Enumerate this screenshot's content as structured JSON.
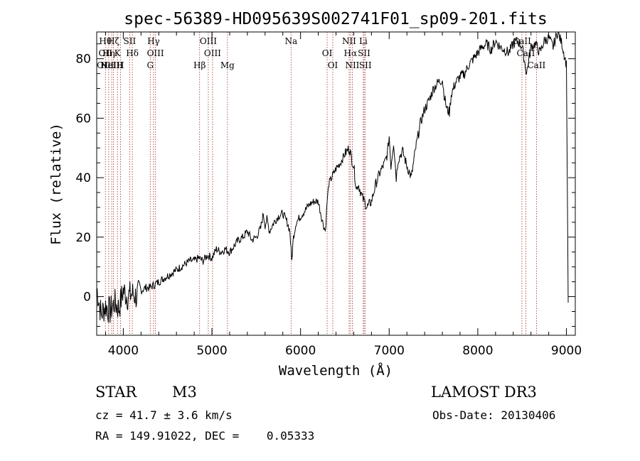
{
  "chart_data": {
    "type": "line",
    "title": "spec-56389-HD095639S002741F01_sp09-201.fits",
    "xlabel": "Wavelength (Å)",
    "ylabel": "Flux (relative)",
    "xlim": [
      3700,
      9100
    ],
    "ylim": [
      -13,
      89
    ],
    "xticks": [
      4000,
      5000,
      6000,
      7000,
      8000,
      9000
    ],
    "yticks": [
      0,
      20,
      40,
      60,
      80
    ],
    "series": [
      {
        "name": "spectrum",
        "x": [
          3700,
          3750,
          3800,
          3850,
          3900,
          3950,
          4000,
          4050,
          4100,
          4150,
          4200,
          4250,
          4300,
          4350,
          4400,
          4450,
          4500,
          4550,
          4600,
          4650,
          4700,
          4750,
          4800,
          4850,
          4900,
          4950,
          5000,
          5050,
          5100,
          5150,
          5200,
          5250,
          5300,
          5350,
          5400,
          5450,
          5500,
          5550,
          5580,
          5600,
          5620,
          5650,
          5700,
          5750,
          5800,
          5850,
          5880,
          5900,
          5920,
          5950,
          6000,
          6050,
          6100,
          6150,
          6200,
          6250,
          6280,
          6300,
          6320,
          6350,
          6400,
          6450,
          6500,
          6550,
          6580,
          6600,
          6630,
          6650,
          6700,
          6720,
          6750,
          6800,
          6850,
          6900,
          6950,
          6980,
          7000,
          7020,
          7050,
          7080,
          7100,
          7150,
          7200,
          7250,
          7300,
          7350,
          7400,
          7450,
          7500,
          7550,
          7600,
          7620,
          7650,
          7680,
          7700,
          7750,
          7800,
          7850,
          7900,
          7950,
          8000,
          8050,
          8100,
          8150,
          8200,
          8250,
          8300,
          8350,
          8400,
          8450,
          8500,
          8550,
          8600,
          8650,
          8700,
          8750,
          8800,
          8850,
          8900,
          8950,
          9000,
          9020
        ],
        "values": [
          3,
          -6,
          -3,
          -5,
          -2,
          -4,
          2,
          0,
          1,
          0,
          2,
          3,
          3,
          4,
          5,
          6,
          7,
          8,
          9,
          10,
          11,
          12,
          12,
          13,
          12,
          14,
          13,
          16,
          15,
          16,
          15,
          17,
          19,
          20,
          22,
          19,
          20,
          23,
          28,
          24,
          26,
          22,
          25,
          27,
          28,
          25,
          22,
          12,
          20,
          25,
          27,
          29,
          31,
          32,
          32,
          25,
          22,
          32,
          38,
          40,
          43,
          45,
          48,
          50,
          46,
          44,
          36,
          38,
          33,
          32,
          30,
          32,
          38,
          42,
          45,
          48,
          54,
          44,
          52,
          40,
          46,
          49,
          44,
          40,
          50,
          58,
          63,
          66,
          70,
          72,
          73,
          68,
          63,
          62,
          68,
          72,
          74,
          75,
          78,
          80,
          82,
          84,
          85,
          83,
          86,
          84,
          83,
          82,
          85,
          86,
          84,
          75,
          84,
          85,
          82,
          86,
          87,
          84,
          89,
          85,
          78,
          -2
        ]
      }
    ],
    "lines": [
      {
        "wave": 3798,
        "labels": [
          "Hθ",
          "OII",
          "OIII"
        ]
      },
      {
        "wave": 3835,
        "labels": [
          "Hη",
          "HeI"
        ]
      },
      {
        "wave": 3869,
        "labels": [
          "NeIII"
        ]
      },
      {
        "wave": 3889,
        "labels": [
          "Hζ"
        ]
      },
      {
        "wave": 3934,
        "labels": [
          "K"
        ]
      },
      {
        "wave": 3968,
        "labels": [
          "H"
        ]
      },
      {
        "wave": 4072,
        "labels": [
          "SII"
        ]
      },
      {
        "wave": 4102,
        "labels": [
          "Hδ"
        ]
      },
      {
        "wave": 4304,
        "labels": [
          "G"
        ]
      },
      {
        "wave": 4341,
        "labels": [
          "Hγ"
        ]
      },
      {
        "wave": 4363,
        "labels": [
          "OIII"
        ]
      },
      {
        "wave": 4861,
        "labels": [
          "Hβ"
        ]
      },
      {
        "wave": 4959,
        "labels": [
          "OIII"
        ]
      },
      {
        "wave": 5007,
        "labels": [
          "OIII"
        ]
      },
      {
        "wave": 5175,
        "labels": [
          "Mg"
        ]
      },
      {
        "wave": 5893,
        "labels": [
          "Na"
        ]
      },
      {
        "wave": 6300,
        "labels": [
          "OI"
        ]
      },
      {
        "wave": 6364,
        "labels": [
          "OI"
        ]
      },
      {
        "wave": 6548,
        "labels": [
          "NII"
        ]
      },
      {
        "wave": 6563,
        "labels": [
          "Hα"
        ]
      },
      {
        "wave": 6584,
        "labels": [
          "NII"
        ]
      },
      {
        "wave": 6708,
        "labels": [
          "Li"
        ]
      },
      {
        "wave": 6717,
        "labels": [
          "SII"
        ]
      },
      {
        "wave": 6731,
        "labels": [
          "SII"
        ]
      },
      {
        "wave": 8498,
        "labels": [
          "CaII"
        ]
      },
      {
        "wave": 8542,
        "labels": [
          "CaII"
        ]
      },
      {
        "wave": 8662,
        "labels": [
          "CaII"
        ]
      }
    ],
    "line_color": "#a52a2a",
    "trace_color": "#000000"
  },
  "info": {
    "object_class": "STAR",
    "subclass": "M3",
    "survey": "LAMOST DR3",
    "redshift": "cz = 41.7 ± 3.6 km/s",
    "obs_date": "Obs-Date: 20130406",
    "coords": "RA = 149.91022, DEC =    0.05333"
  }
}
